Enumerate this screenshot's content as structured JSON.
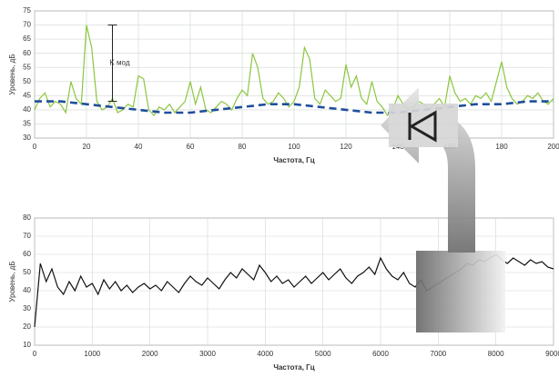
{
  "chart_data": [
    {
      "type": "line",
      "annotation": "K мод",
      "xlabel": "Частота, Гц",
      "ylabel": "Уровень, дБ",
      "xlim": [
        0,
        200
      ],
      "xticks": [
        0,
        20,
        40,
        60,
        80,
        100,
        120,
        140,
        160,
        180,
        200
      ],
      "ylim": [
        30,
        75
      ],
      "yticks": [
        30,
        35,
        40,
        45,
        50,
        55,
        60,
        65,
        70,
        75
      ],
      "grid": true,
      "series": [
        {
          "color": "#8cc63f",
          "dash": false,
          "x": [
            0,
            2,
            4,
            6,
            8,
            10,
            12,
            14,
            16,
            18,
            20,
            22,
            24,
            26,
            28,
            30,
            32,
            34,
            36,
            38,
            40,
            42,
            44,
            46,
            48,
            50,
            52,
            54,
            56,
            58,
            60,
            62,
            64,
            66,
            68,
            70,
            72,
            74,
            76,
            78,
            80,
            82,
            84,
            86,
            88,
            90,
            92,
            94,
            96,
            98,
            100,
            102,
            104,
            106,
            108,
            110,
            112,
            114,
            116,
            118,
            120,
            122,
            124,
            126,
            128,
            130,
            132,
            134,
            136,
            138,
            140,
            142,
            144,
            146,
            148,
            150,
            152,
            154,
            156,
            158,
            160,
            162,
            164,
            166,
            168,
            170,
            172,
            174,
            176,
            178,
            180,
            182,
            184,
            186,
            188,
            190,
            192,
            194,
            196,
            198,
            200
          ],
          "values": [
            40,
            44,
            46,
            41,
            43,
            42,
            39,
            50,
            44,
            42,
            70,
            62,
            43,
            40,
            41,
            44,
            39,
            40,
            42,
            41,
            52,
            51,
            40,
            38,
            41,
            40,
            42,
            39,
            41,
            43,
            50,
            42,
            48,
            40,
            39,
            41,
            43,
            42,
            40,
            44,
            47,
            45,
            60,
            55,
            44,
            42,
            43,
            46,
            44,
            41,
            43,
            48,
            62,
            58,
            44,
            42,
            47,
            45,
            43,
            44,
            56,
            48,
            52,
            44,
            42,
            50,
            43,
            41,
            38,
            40,
            45,
            42,
            40,
            41,
            43,
            42,
            40,
            42,
            44,
            41,
            52,
            46,
            43,
            44,
            42,
            45,
            44,
            46,
            43,
            50,
            57,
            48,
            44,
            42,
            43,
            45,
            44,
            46,
            43,
            42,
            44
          ]
        },
        {
          "color": "#1f4e9c",
          "dash": true,
          "x": [
            0,
            10,
            20,
            30,
            40,
            50,
            60,
            70,
            80,
            90,
            100,
            110,
            120,
            130,
            140,
            150,
            160,
            170,
            180,
            190,
            200
          ],
          "values": [
            43,
            43,
            42,
            41,
            40,
            39,
            39,
            40,
            41,
            42,
            42,
            41,
            40,
            39,
            39,
            40,
            41,
            42,
            42,
            43,
            43
          ]
        }
      ]
    },
    {
      "type": "line",
      "xlabel": "Частота, Гц",
      "ylabel": "Уровень, дБ",
      "xlim": [
        0,
        9000
      ],
      "xticks": [
        0,
        1000,
        2000,
        3000,
        4000,
        5000,
        6000,
        7000,
        8000,
        9000
      ],
      "ylim": [
        10,
        80
      ],
      "yticks": [
        10,
        20,
        30,
        40,
        50,
        60,
        70,
        80
      ],
      "grid": true,
      "series": [
        {
          "color": "#111111",
          "dash": false,
          "x": [
            0,
            100,
            200,
            300,
            400,
            500,
            600,
            700,
            800,
            900,
            1000,
            1100,
            1200,
            1300,
            1400,
            1500,
            1600,
            1700,
            1800,
            1900,
            2000,
            2100,
            2200,
            2300,
            2400,
            2500,
            2600,
            2700,
            2800,
            2900,
            3000,
            3100,
            3200,
            3300,
            3400,
            3500,
            3600,
            3700,
            3800,
            3900,
            4000,
            4100,
            4200,
            4300,
            4400,
            4500,
            4600,
            4700,
            4800,
            4900,
            5000,
            5100,
            5200,
            5300,
            5400,
            5500,
            5600,
            5700,
            5800,
            5900,
            6000,
            6100,
            6200,
            6300,
            6400,
            6500,
            6600,
            6700,
            6800,
            6900,
            7000,
            7100,
            7200,
            7300,
            7400,
            7500,
            7600,
            7700,
            7800,
            7900,
            8000,
            8100,
            8200,
            8300,
            8400,
            8500,
            8600,
            8700,
            8800,
            8900,
            9000
          ],
          "values": [
            20,
            55,
            45,
            52,
            42,
            38,
            45,
            40,
            48,
            42,
            44,
            38,
            46,
            41,
            45,
            40,
            43,
            39,
            42,
            44,
            41,
            43,
            40,
            45,
            42,
            39,
            44,
            48,
            45,
            43,
            47,
            44,
            41,
            46,
            50,
            47,
            52,
            49,
            46,
            54,
            50,
            45,
            48,
            44,
            46,
            42,
            45,
            48,
            44,
            47,
            50,
            46,
            49,
            52,
            47,
            44,
            48,
            50,
            53,
            49,
            58,
            52,
            48,
            46,
            50,
            44,
            42,
            46,
            40,
            42,
            44,
            46,
            48,
            50,
            52,
            55,
            54,
            57,
            56,
            58,
            60,
            57,
            55,
            58,
            56,
            54,
            57,
            55,
            56,
            53,
            52
          ]
        }
      ]
    }
  ]
}
